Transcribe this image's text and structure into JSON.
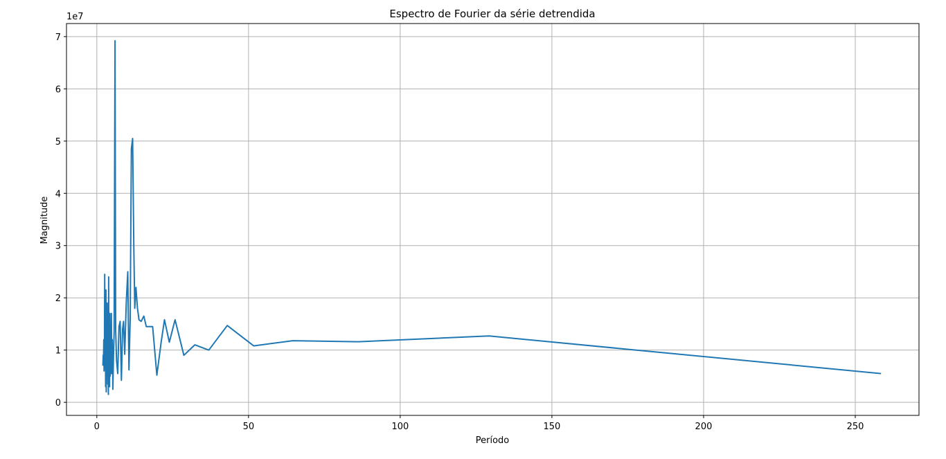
{
  "chart_data": {
    "type": "line",
    "title": "Espectro de Fourier da série detrendida",
    "xlabel": "Período",
    "ylabel": "Magnitude",
    "y_offset_label": "1e7",
    "xlim": [
      -10,
      271
    ],
    "ylim": [
      -0.25,
      7.25
    ],
    "xticks": [
      0,
      50,
      100,
      150,
      200,
      250
    ],
    "yticks": [
      0,
      1,
      2,
      3,
      4,
      5,
      6,
      7
    ],
    "xtick_labels": [
      "0",
      "50",
      "100",
      "150",
      "200",
      "250"
    ],
    "ytick_labels": [
      "0",
      "1",
      "2",
      "3",
      "4",
      "5",
      "6",
      "7"
    ],
    "grid": true,
    "series": [
      {
        "color": "#1f77b4",
        "x": [
          2.0,
          2.1,
          2.2,
          2.3,
          2.4,
          2.5,
          2.6,
          2.7,
          2.8,
          2.9,
          3.0,
          3.1,
          3.2,
          3.3,
          3.4,
          3.5,
          3.6,
          3.7,
          3.8,
          3.9,
          4.0,
          4.1,
          4.2,
          4.3,
          4.4,
          4.5,
          4.6,
          4.7,
          4.8,
          4.9,
          5.0,
          5.1,
          5.3,
          5.5,
          5.7,
          5.85,
          6.0,
          6.2,
          6.5,
          6.9,
          7.3,
          7.7,
          8.1,
          8.5,
          8.8,
          9.2,
          9.7,
          10.2,
          10.6,
          11.0,
          11.4,
          11.8,
          12.2,
          12.5,
          12.9,
          13.4,
          13.9,
          14.6,
          15.5,
          16.3,
          17.2,
          18.4,
          19.8,
          21.2,
          22.3,
          23.9,
          25.8,
          28.7,
          32.3,
          36.9,
          43.0,
          51.7,
          64.6,
          86.2,
          129.3,
          258.5
        ],
        "y": [
          0.7,
          0.9,
          0.8,
          1.2,
          0.6,
          0.9,
          2.45,
          0.8,
          1.8,
          0.3,
          2.15,
          0.2,
          1.6,
          0.6,
          1.9,
          1.05,
          0.35,
          0.8,
          0.15,
          2.4,
          0.4,
          1.2,
          0.3,
          1.7,
          0.5,
          1.05,
          0.55,
          0.9,
          1.7,
          0.85,
          0.55,
          1.2,
          0.25,
          0.9,
          1.35,
          3.95,
          6.92,
          1.4,
          0.8,
          0.55,
          1.45,
          1.55,
          0.42,
          1.4,
          1.55,
          0.92,
          1.9,
          2.5,
          0.62,
          1.6,
          4.85,
          5.05,
          2.9,
          1.8,
          2.2,
          1.8,
          1.58,
          1.55,
          1.65,
          1.45,
          1.45,
          1.45,
          0.52,
          1.15,
          1.58,
          1.15,
          1.58,
          0.9,
          1.1,
          1.0,
          1.47,
          1.08,
          1.18,
          1.16,
          1.27,
          0.55
        ]
      }
    ]
  }
}
